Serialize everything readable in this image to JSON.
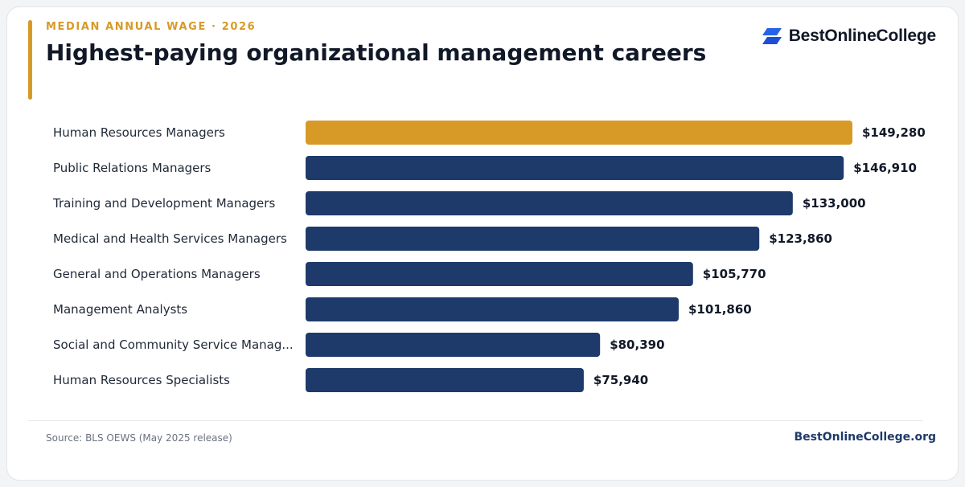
{
  "header": {
    "eyebrow": "MEDIAN ANNUAL WAGE · 2026",
    "title": "Highest-paying organizational management careers"
  },
  "brand": {
    "name": "BestOnlineCollege",
    "icon": "parallelogram-logo-icon",
    "icon_color": "#2563eb"
  },
  "footer": {
    "source": "Source: BLS OEWS (May 2025 release)",
    "site": "BestOnlineCollege.org"
  },
  "colors": {
    "highlight": "#d89a27",
    "bar": "#1e3a6b",
    "accent": "#d89a27"
  },
  "chart_data": {
    "type": "bar",
    "orientation": "horizontal",
    "categories": [
      "Human Resources Managers",
      "Public Relations Managers",
      "Training and Development Managers",
      "Medical and Health Services Managers",
      "General and Operations Managers",
      "Management Analysts",
      "Social and Community Service Manag...",
      "Human Resources Specialists"
    ],
    "values": [
      149280,
      146910,
      133000,
      123860,
      105770,
      101860,
      80390,
      75940
    ],
    "value_labels": [
      "$149,280",
      "$146,910",
      "$133,000",
      "$123,860",
      "$105,770",
      "$101,860",
      "$80,390",
      "$75,940"
    ],
    "highlight_index": 0,
    "xlim": [
      0,
      149280
    ],
    "grid": false,
    "legend": "none"
  }
}
